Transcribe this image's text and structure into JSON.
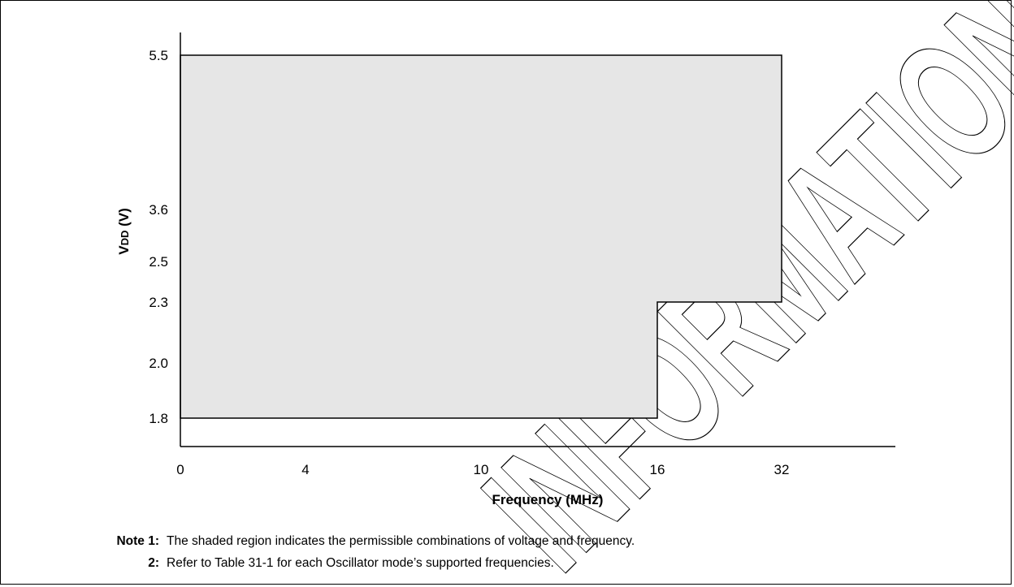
{
  "chart_data": {
    "type": "area",
    "x_ticks": [
      "0",
      "4",
      "10",
      "16",
      "32"
    ],
    "y_ticks": [
      "1.8",
      "2.0",
      "2.3",
      "2.5",
      "3.6",
      "5.5"
    ],
    "xlabel": "Frequency (MHz)",
    "ylabel": {
      "main": "V",
      "sub": "DD",
      "unit": " (V)"
    },
    "region": {
      "description": "Permissible operating region (shaded)",
      "points": [
        {
          "x": "0",
          "y": 1.8
        },
        {
          "x": "16",
          "y": 1.8
        },
        {
          "x": "16",
          "y": 2.3
        },
        {
          "x": "32",
          "y": 2.3
        },
        {
          "x": "32",
          "y": 5.5
        },
        {
          "x": "0",
          "y": 5.5
        }
      ]
    },
    "fill_color": "#e6e6e6",
    "watermark": "INFORMATION",
    "grid": false,
    "legend": "none"
  },
  "notes": [
    {
      "num": "Note 1:",
      "text": "The shaded region indicates the permissible combinations of voltage and frequency."
    },
    {
      "num": "2:",
      "text": "Refer to Table 31-1 for each Oscillator mode’s supported frequencies."
    }
  ]
}
